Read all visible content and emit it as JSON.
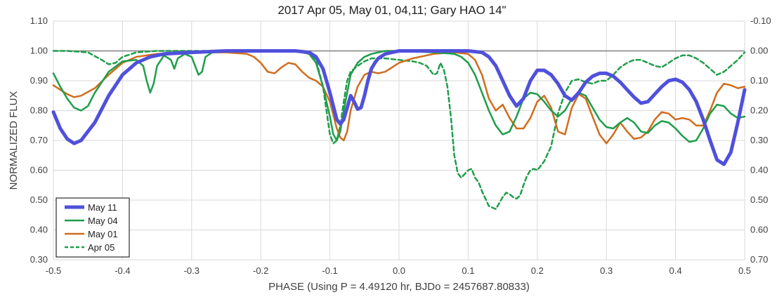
{
  "chart_data": {
    "type": "line",
    "title": "2017 Apr 05, May 01, 04,11; Gary HAO 14\"",
    "xlabel": "PHASE (Using P = 4.49120 hr, BJDo = 2457687.80833)",
    "ylabel": "NORMALIZED FLUX",
    "xlim": [
      -0.5,
      0.5
    ],
    "ylim": [
      0.3,
      1.1
    ],
    "y2lim": [
      0.7,
      -0.1
    ],
    "grid": true,
    "legend_position": "bottom-left",
    "x_ticks": [
      "-0.5",
      "-0.4",
      "-0.3",
      "-0.2",
      "-0.1",
      "0.0",
      "0.1",
      "0.2",
      "0.3",
      "0.4",
      "0.5"
    ],
    "y_ticks": [
      "1.10",
      "1.00",
      "0.90",
      "0.80",
      "0.70",
      "0.60",
      "0.50",
      "0.40",
      "0.30"
    ],
    "y2_ticks": [
      "-0.10",
      "0.00",
      "0.10",
      "0.20",
      "0.30",
      "0.40",
      "0.50",
      "0.60",
      "0.70"
    ],
    "reference_line": 1.0,
    "series": [
      {
        "name": "May 11",
        "color": "#5050dc",
        "style": "thick",
        "x": [
          -0.5,
          -0.49,
          -0.48,
          -0.47,
          -0.46,
          -0.44,
          -0.42,
          -0.4,
          -0.38,
          -0.36,
          -0.34,
          -0.3,
          -0.25,
          -0.2,
          -0.15,
          -0.13,
          -0.12,
          -0.11,
          -0.1,
          -0.09,
          -0.085,
          -0.08,
          -0.075,
          -0.07,
          -0.065,
          -0.06,
          -0.055,
          -0.05,
          -0.045,
          -0.04,
          -0.035,
          -0.03,
          -0.02,
          -0.01,
          0.0,
          0.05,
          0.1,
          0.12,
          0.13,
          0.14,
          0.15,
          0.16,
          0.17,
          0.18,
          0.19,
          0.2,
          0.21,
          0.22,
          0.23,
          0.24,
          0.25,
          0.26,
          0.27,
          0.28,
          0.29,
          0.3,
          0.31,
          0.32,
          0.33,
          0.34,
          0.35,
          0.36,
          0.37,
          0.38,
          0.39,
          0.4,
          0.41,
          0.42,
          0.43,
          0.44,
          0.45,
          0.46,
          0.47,
          0.48,
          0.49,
          0.5
        ],
        "y": [
          0.795,
          0.74,
          0.705,
          0.69,
          0.7,
          0.76,
          0.85,
          0.92,
          0.96,
          0.98,
          0.99,
          0.995,
          1.0,
          1.0,
          1.0,
          0.995,
          0.98,
          0.94,
          0.86,
          0.77,
          0.755,
          0.77,
          0.81,
          0.85,
          0.83,
          0.805,
          0.81,
          0.85,
          0.9,
          0.94,
          0.96,
          0.975,
          0.99,
          0.995,
          1.0,
          1.0,
          1.0,
          0.995,
          0.98,
          0.95,
          0.9,
          0.85,
          0.815,
          0.84,
          0.9,
          0.935,
          0.935,
          0.92,
          0.89,
          0.85,
          0.835,
          0.86,
          0.895,
          0.915,
          0.925,
          0.925,
          0.915,
          0.895,
          0.87,
          0.845,
          0.825,
          0.83,
          0.855,
          0.88,
          0.9,
          0.905,
          0.895,
          0.87,
          0.83,
          0.77,
          0.7,
          0.635,
          0.62,
          0.66,
          0.76,
          0.87
        ]
      },
      {
        "name": "May 04",
        "color": "#1f9e4a",
        "style": "solid",
        "x": [
          -0.5,
          -0.49,
          -0.48,
          -0.47,
          -0.46,
          -0.45,
          -0.44,
          -0.42,
          -0.4,
          -0.38,
          -0.37,
          -0.365,
          -0.36,
          -0.355,
          -0.35,
          -0.34,
          -0.33,
          -0.325,
          -0.32,
          -0.31,
          -0.3,
          -0.29,
          -0.285,
          -0.28,
          -0.27,
          -0.25,
          -0.2,
          -0.15,
          -0.13,
          -0.12,
          -0.11,
          -0.1,
          -0.095,
          -0.09,
          -0.085,
          -0.08,
          -0.075,
          -0.07,
          -0.06,
          -0.05,
          -0.04,
          -0.03,
          -0.02,
          0.0,
          0.05,
          0.08,
          0.09,
          0.1,
          0.11,
          0.12,
          0.13,
          0.14,
          0.15,
          0.16,
          0.17,
          0.18,
          0.19,
          0.2,
          0.21,
          0.22,
          0.23,
          0.24,
          0.25,
          0.26,
          0.27,
          0.28,
          0.29,
          0.3,
          0.31,
          0.32,
          0.33,
          0.34,
          0.35,
          0.36,
          0.37,
          0.38,
          0.39,
          0.4,
          0.41,
          0.42,
          0.43,
          0.44,
          0.45,
          0.46,
          0.47,
          0.48,
          0.49,
          0.5
        ],
        "y": [
          0.925,
          0.88,
          0.84,
          0.81,
          0.8,
          0.815,
          0.86,
          0.93,
          0.965,
          0.97,
          0.95,
          0.9,
          0.86,
          0.89,
          0.95,
          0.985,
          0.97,
          0.94,
          0.975,
          0.99,
          0.98,
          0.92,
          0.93,
          0.98,
          0.995,
          1.0,
          1.0,
          1.0,
          0.99,
          0.96,
          0.88,
          0.78,
          0.72,
          0.7,
          0.73,
          0.8,
          0.86,
          0.92,
          0.96,
          0.98,
          0.99,
          0.995,
          1.0,
          1.0,
          0.995,
          0.99,
          0.98,
          0.96,
          0.92,
          0.86,
          0.8,
          0.75,
          0.72,
          0.73,
          0.78,
          0.84,
          0.86,
          0.855,
          0.83,
          0.8,
          0.78,
          0.8,
          0.84,
          0.86,
          0.85,
          0.81,
          0.77,
          0.745,
          0.74,
          0.76,
          0.775,
          0.76,
          0.73,
          0.725,
          0.75,
          0.765,
          0.76,
          0.74,
          0.715,
          0.695,
          0.7,
          0.74,
          0.79,
          0.82,
          0.815,
          0.79,
          0.775,
          0.78
        ]
      },
      {
        "name": "May 01",
        "color": "#d06d1e",
        "style": "solid",
        "x": [
          -0.5,
          -0.49,
          -0.48,
          -0.47,
          -0.46,
          -0.44,
          -0.42,
          -0.4,
          -0.38,
          -0.35,
          -0.3,
          -0.25,
          -0.22,
          -0.21,
          -0.2,
          -0.19,
          -0.18,
          -0.17,
          -0.16,
          -0.15,
          -0.14,
          -0.13,
          -0.12,
          -0.11,
          -0.1,
          -0.09,
          -0.085,
          -0.08,
          -0.075,
          -0.07,
          -0.06,
          -0.05,
          -0.04,
          -0.03,
          -0.02,
          -0.01,
          0.0,
          0.02,
          0.05,
          0.08,
          0.1,
          0.11,
          0.12,
          0.13,
          0.14,
          0.15,
          0.16,
          0.17,
          0.18,
          0.19,
          0.2,
          0.21,
          0.22,
          0.23,
          0.24,
          0.25,
          0.26,
          0.27,
          0.28,
          0.29,
          0.3,
          0.31,
          0.32,
          0.33,
          0.34,
          0.35,
          0.36,
          0.37,
          0.38,
          0.39,
          0.4,
          0.41,
          0.42,
          0.43,
          0.44,
          0.45,
          0.46,
          0.47,
          0.48,
          0.49,
          0.5
        ],
        "y": [
          0.885,
          0.87,
          0.855,
          0.845,
          0.85,
          0.875,
          0.92,
          0.96,
          0.98,
          0.99,
          0.995,
          0.995,
          0.99,
          0.98,
          0.96,
          0.93,
          0.925,
          0.945,
          0.96,
          0.955,
          0.93,
          0.91,
          0.9,
          0.88,
          0.83,
          0.74,
          0.71,
          0.7,
          0.73,
          0.8,
          0.88,
          0.92,
          0.93,
          0.925,
          0.93,
          0.945,
          0.96,
          0.975,
          0.99,
          0.995,
          0.99,
          0.97,
          0.92,
          0.84,
          0.8,
          0.82,
          0.775,
          0.74,
          0.74,
          0.775,
          0.83,
          0.85,
          0.81,
          0.73,
          0.72,
          0.81,
          0.855,
          0.84,
          0.78,
          0.72,
          0.69,
          0.72,
          0.76,
          0.73,
          0.705,
          0.71,
          0.73,
          0.77,
          0.795,
          0.79,
          0.77,
          0.775,
          0.77,
          0.75,
          0.75,
          0.8,
          0.86,
          0.89,
          0.885,
          0.875,
          0.88
        ]
      },
      {
        "name": "Apr 05",
        "color": "#1f9e4a",
        "style": "dashed",
        "x": [
          -0.5,
          -0.48,
          -0.45,
          -0.43,
          -0.42,
          -0.41,
          -0.4,
          -0.38,
          -0.35,
          -0.3,
          -0.25,
          -0.2,
          -0.15,
          -0.13,
          -0.12,
          -0.11,
          -0.1,
          -0.095,
          -0.09,
          -0.085,
          -0.08,
          -0.075,
          -0.07,
          -0.06,
          -0.05,
          -0.04,
          -0.02,
          0.0,
          0.02,
          0.03,
          0.04,
          0.05,
          0.055,
          0.06,
          0.065,
          0.07,
          0.075,
          0.08,
          0.085,
          0.09,
          0.1,
          0.105,
          0.11,
          0.115,
          0.12,
          0.125,
          0.13,
          0.135,
          0.14,
          0.145,
          0.15,
          0.155,
          0.16,
          0.165,
          0.17,
          0.175,
          0.18,
          0.185,
          0.19,
          0.195,
          0.2,
          0.21,
          0.22,
          0.23,
          0.24,
          0.25,
          0.26,
          0.27,
          0.28,
          0.29,
          0.3,
          0.31,
          0.32,
          0.33,
          0.34,
          0.35,
          0.36,
          0.37,
          0.38,
          0.39,
          0.4,
          0.41,
          0.42,
          0.43,
          0.44,
          0.45,
          0.46,
          0.47,
          0.48,
          0.49,
          0.5
        ],
        "y": [
          1.0,
          1.0,
          0.995,
          0.97,
          0.955,
          0.96,
          0.98,
          0.995,
          1.0,
          1.0,
          1.0,
          1.0,
          1.0,
          0.995,
          0.97,
          0.88,
          0.72,
          0.69,
          0.7,
          0.75,
          0.83,
          0.9,
          0.93,
          0.95,
          0.965,
          0.975,
          0.975,
          0.97,
          0.965,
          0.96,
          0.95,
          0.92,
          0.925,
          0.96,
          0.935,
          0.88,
          0.78,
          0.65,
          0.59,
          0.575,
          0.6,
          0.605,
          0.575,
          0.56,
          0.53,
          0.505,
          0.48,
          0.475,
          0.47,
          0.49,
          0.51,
          0.525,
          0.52,
          0.51,
          0.505,
          0.515,
          0.55,
          0.58,
          0.6,
          0.605,
          0.6,
          0.63,
          0.68,
          0.79,
          0.86,
          0.9,
          0.905,
          0.895,
          0.89,
          0.9,
          0.9,
          0.92,
          0.945,
          0.96,
          0.97,
          0.97,
          0.96,
          0.95,
          0.945,
          0.96,
          0.975,
          0.985,
          0.985,
          0.975,
          0.96,
          0.94,
          0.92,
          0.93,
          0.95,
          0.97,
          0.995
        ]
      }
    ]
  }
}
